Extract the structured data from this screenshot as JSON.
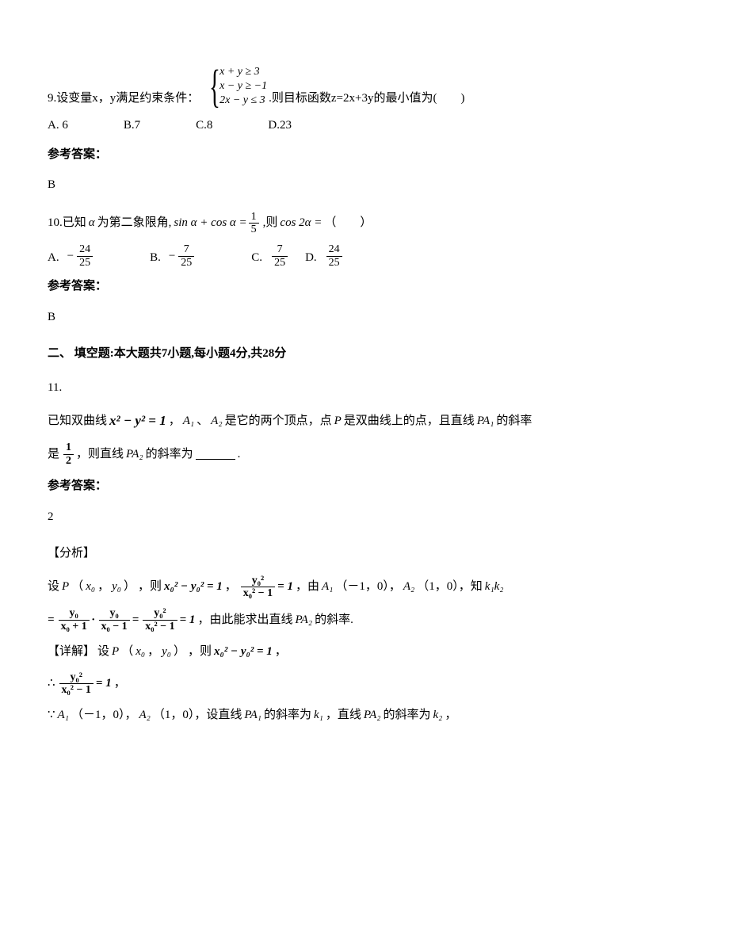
{
  "q9": {
    "prefix": "9.设变量x，y满足约束条件：",
    "constraints": [
      "x + y ≥ 3",
      "x − y ≥ −1",
      "2x − y ≤ 3"
    ],
    "suffix": ".则目标函数z=2x+3y的最小值为(　　)",
    "options": {
      "A": "A. 6",
      "B": "B.7",
      "C": "C.8",
      "D": "D.23"
    },
    "answer_label": "参考答案：",
    "answer": "B"
  },
  "q10": {
    "prefix": "10.已知",
    "alpha": "α",
    "mid1": "为第二象限角,",
    "eq_left": "sin α + cos α =",
    "frac1": {
      "num": "1",
      "den": "5"
    },
    "mid2": ",则",
    "eq_right": "cos 2α =",
    "suffix": "（　　）",
    "options": {
      "A": {
        "label": "A.",
        "neg": "−",
        "num": "24",
        "den": "25"
      },
      "B": {
        "label": "B.",
        "neg": "−",
        "num": "7",
        "den": "25"
      },
      "C": {
        "label": "C.",
        "neg": "",
        "num": "7",
        "den": "25"
      },
      "D": {
        "label": "D.",
        "neg": "",
        "num": "24",
        "den": "25"
      }
    },
    "answer_label": "参考答案：",
    "answer": "B"
  },
  "section2": "二、 填空题:本大题共7小题,每小题4分,共28分",
  "q11": {
    "num": "11.",
    "line1_a": "已知双曲线",
    "eq1": "x² − y² = 1",
    "line1_b": "，",
    "A1": "A₁",
    "line1_c": "、",
    "A2": "A₂",
    "line1_d": "是它的两个顶点，点",
    "P": "P",
    "line1_e": "是双曲线上的点，且直线",
    "PA1": "PA₁",
    "line1_f": "的斜率",
    "line2_a": "是",
    "frac_half": {
      "num": "1",
      "den": "2"
    },
    "line2_b": "，则直线",
    "PA2": "PA₂",
    "line2_c": "的斜率为",
    "period": ".",
    "answer_label": "参考答案：",
    "answer": "2",
    "analysis_label": "【分析】",
    "a_line1_a": "设",
    "a_line1_b": "（",
    "x0": "x₀",
    "comma": "，",
    "y0": "y₀",
    "rparen": "）",
    "a_line1_c": "，则",
    "eq_x0y0": "x₀² − y₀² = 1",
    "a_line1_d": "，",
    "frac_y0sq": {
      "num": "y₀²",
      "den": "x₀² − 1",
      "eq": "= 1"
    },
    "a_line1_e": "，由",
    "A1_coord_a": "（－1，0），",
    "A2_coord_a": "（1，0），知",
    "k1k2": "k₁k₂",
    "a_line2_eq": "=",
    "frac_k1": {
      "num": "y₀",
      "den": "x₀ + 1"
    },
    "dot": "·",
    "frac_k2": {
      "num": "y₀",
      "den": "x₀ − 1"
    },
    "eq": "=",
    "frac_k3": {
      "num": "y₀²",
      "den": "x₀² − 1"
    },
    "eq1_val": "= 1",
    "a_line2_b": "，由此能求出直线",
    "a_line2_c": "的斜率.",
    "detail_label": "【详解】",
    "d_line1_a": "设",
    "d_line1_b": "，则",
    "d_line1_c": "，",
    "therefore1": "∴",
    "because": "∵",
    "d_line3_a": "（－1，0），",
    "d_line3_b": "（1，0），设直线",
    "d_line3_c": "的斜率为",
    "k1": "k₁",
    "d_line3_d": "，直线",
    "d_line3_e": "的斜率为",
    "k2": "k₂",
    "d_line3_f": "，"
  }
}
